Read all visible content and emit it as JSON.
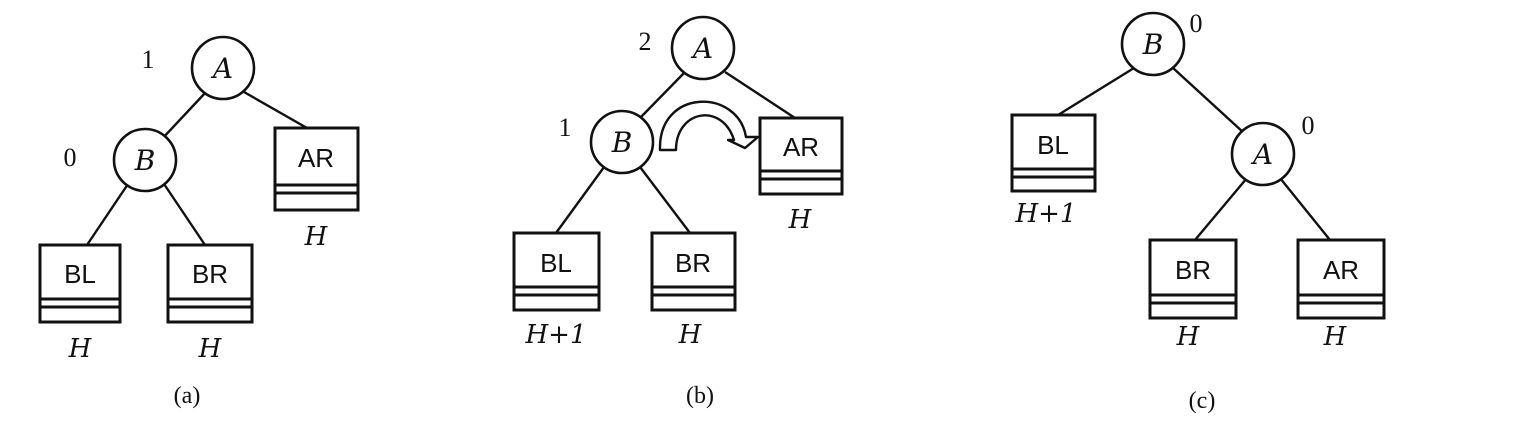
{
  "panels": [
    {
      "caption": "(a)",
      "nodes": [
        {
          "label": "A",
          "balance": "1"
        },
        {
          "label": "B",
          "balance": "0"
        }
      ],
      "subtrees": [
        {
          "label": "AR",
          "height": "H"
        },
        {
          "label": "BL",
          "height": "H"
        },
        {
          "label": "BR",
          "height": "H"
        }
      ]
    },
    {
      "caption": "(b)",
      "nodes": [
        {
          "label": "A",
          "balance": "2"
        },
        {
          "label": "B",
          "balance": "1"
        }
      ],
      "subtrees": [
        {
          "label": "AR",
          "height": "H"
        },
        {
          "label": "BL",
          "height": "H+1"
        },
        {
          "label": "BR",
          "height": "H"
        }
      ]
    },
    {
      "caption": "(c)",
      "nodes": [
        {
          "label": "B",
          "balance": "0"
        },
        {
          "label": "A",
          "balance": "0"
        }
      ],
      "subtrees": [
        {
          "label": "BL",
          "height": "H+1"
        },
        {
          "label": "BR",
          "height": "H"
        },
        {
          "label": "AR",
          "height": "H"
        }
      ]
    }
  ]
}
